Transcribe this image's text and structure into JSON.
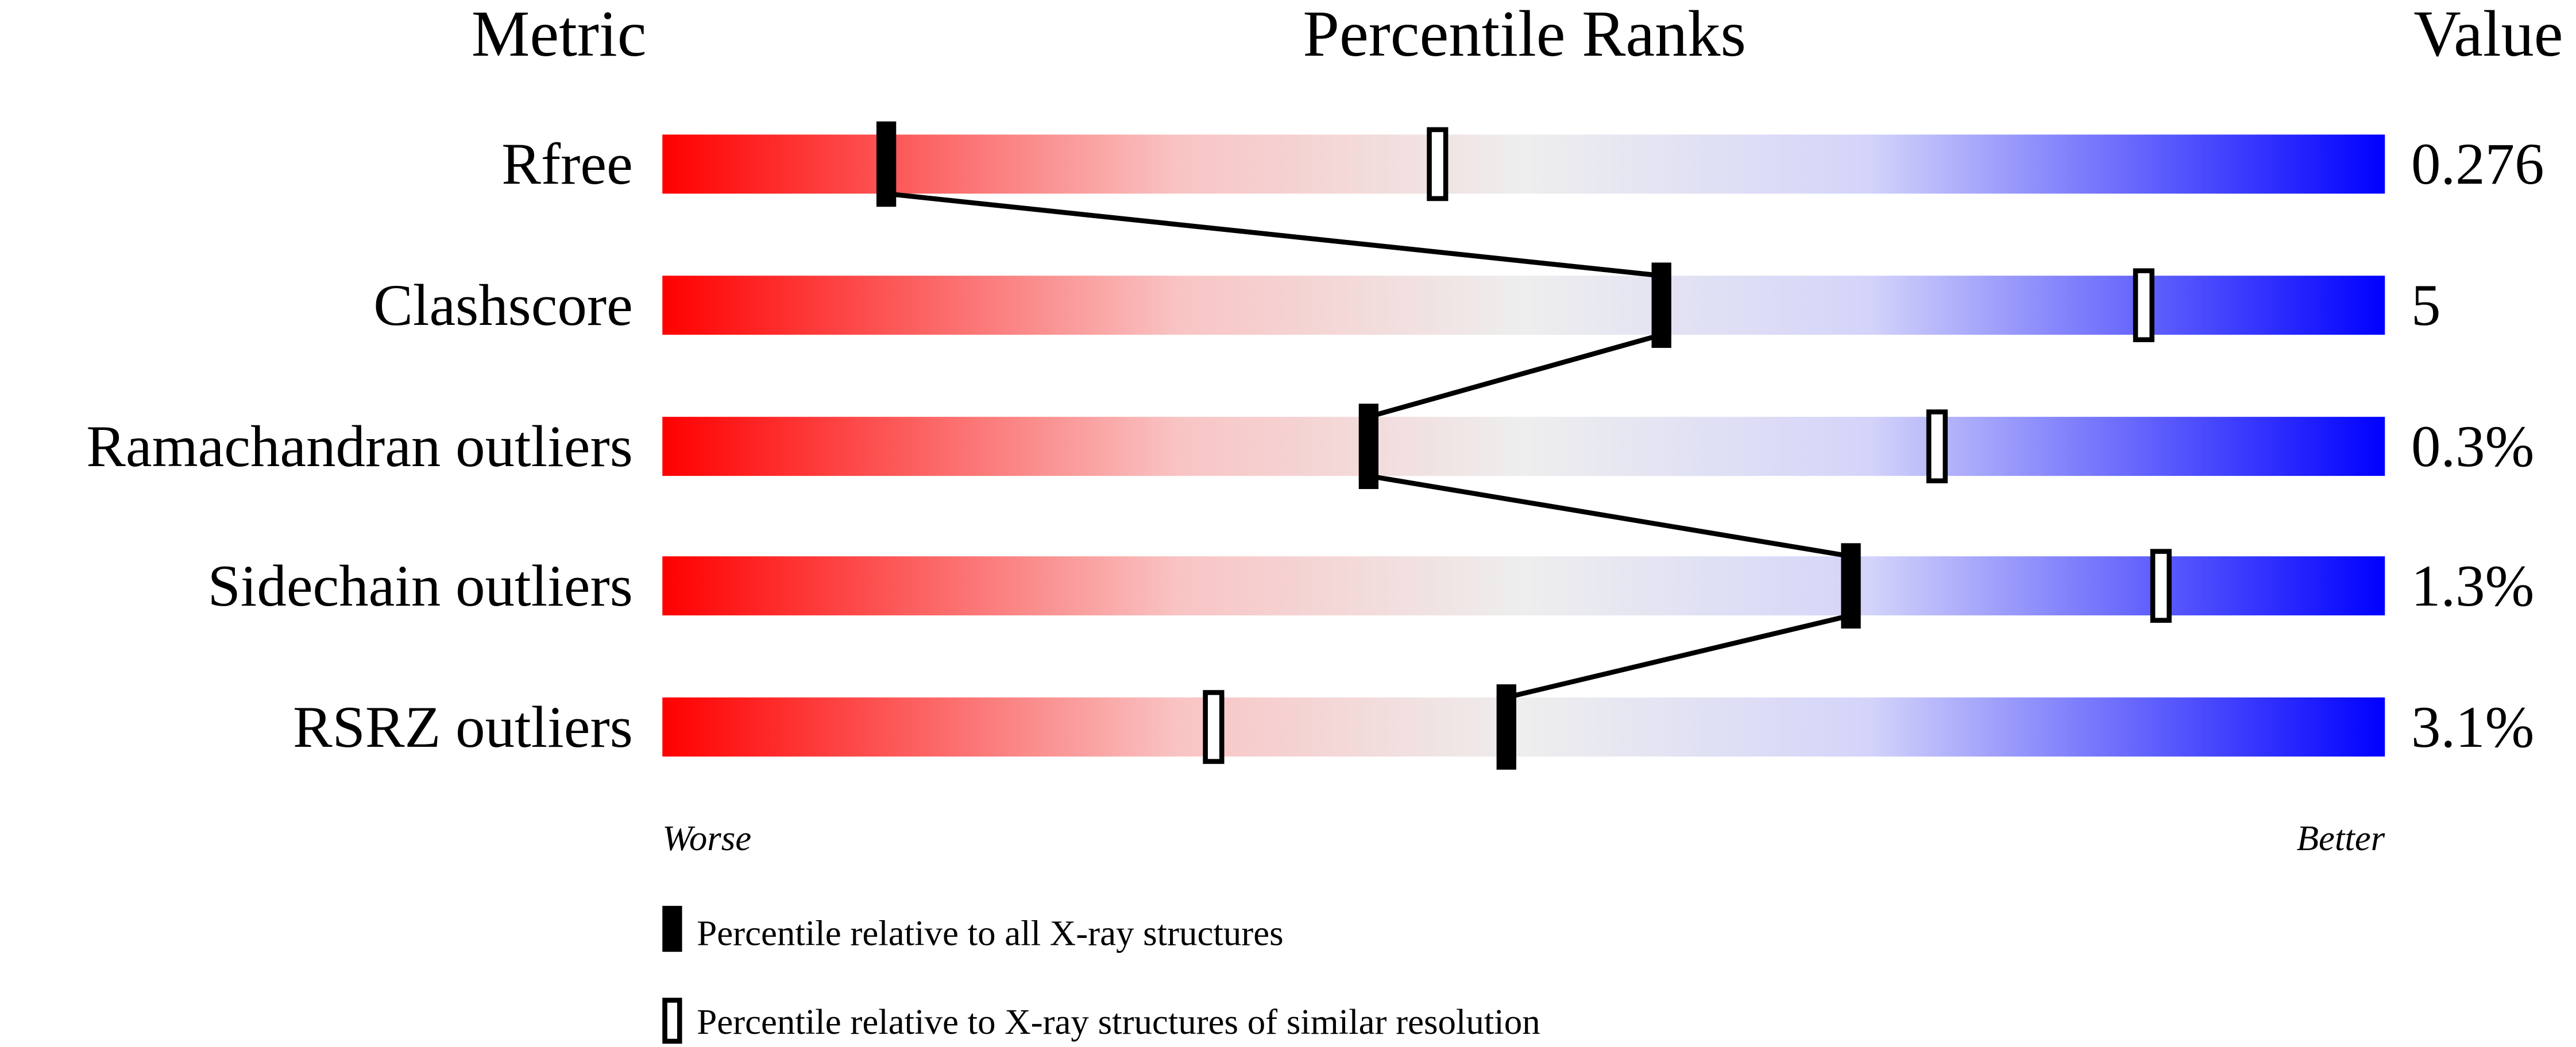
{
  "chart_data": {
    "type": "percentile-strip",
    "headers": {
      "metric": "Metric",
      "ranks": "Percentile Ranks",
      "value": "Value"
    },
    "xlim": [
      0,
      100
    ],
    "axis_labels": {
      "low": "Worse",
      "high": "Better"
    },
    "gradient_colors": [
      "#ff0000",
      "#eeeeee",
      "#0000ff"
    ],
    "metrics": [
      {
        "name": "Rfree",
        "value": "0.276",
        "percentile_all": 13,
        "percentile_similar": 45
      },
      {
        "name": "Clashscore",
        "value": "5",
        "percentile_all": 58,
        "percentile_similar": 86
      },
      {
        "name": "Ramachandran outliers",
        "value": "0.3%",
        "percentile_all": 41,
        "percentile_similar": 74
      },
      {
        "name": "Sidechain outliers",
        "value": "1.3%",
        "percentile_all": 69,
        "percentile_similar": 87
      },
      {
        "name": "RSRZ outliers",
        "value": "3.1%",
        "percentile_all": 49,
        "percentile_similar": 32
      }
    ],
    "legend": [
      {
        "marker": "filled",
        "label": "Percentile relative to all X-ray structures"
      },
      {
        "marker": "open",
        "label": "Percentile relative to X-ray structures of similar resolution"
      }
    ]
  }
}
